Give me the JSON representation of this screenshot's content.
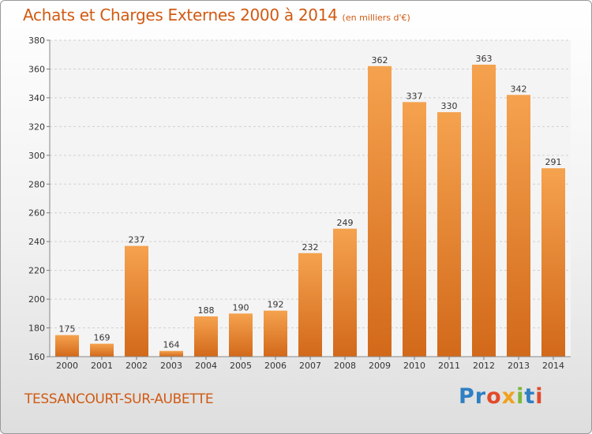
{
  "header": {
    "title": "Achats et Charges Externes 2000 à 2014",
    "subtitle": "(en milliers d'€)"
  },
  "footer": {
    "commune": "TESSANCOURT-SUR-AUBETTE",
    "logo_parts": [
      "Pr",
      "o",
      "x",
      "i",
      "t",
      "i"
    ]
  },
  "chart_data": {
    "type": "bar",
    "title": "Achats et Charges Externes 2000 à 2014",
    "subtitle": "(en milliers d'€)",
    "categories": [
      "2000",
      "2001",
      "2002",
      "2003",
      "2004",
      "2005",
      "2006",
      "2007",
      "2008",
      "2009",
      "2010",
      "2011",
      "2012",
      "2013",
      "2014"
    ],
    "values": [
      175,
      169,
      237,
      164,
      188,
      190,
      192,
      232,
      249,
      362,
      337,
      330,
      363,
      342,
      291
    ],
    "xlabel": "",
    "ylabel": "",
    "ylim": [
      160,
      380
    ],
    "yticks": [
      160,
      180,
      200,
      220,
      240,
      260,
      280,
      300,
      320,
      340,
      360,
      380
    ],
    "grid": true,
    "legend": "none",
    "bar_color_top": "#f5a24e",
    "bar_color_bottom": "#d2691a"
  }
}
